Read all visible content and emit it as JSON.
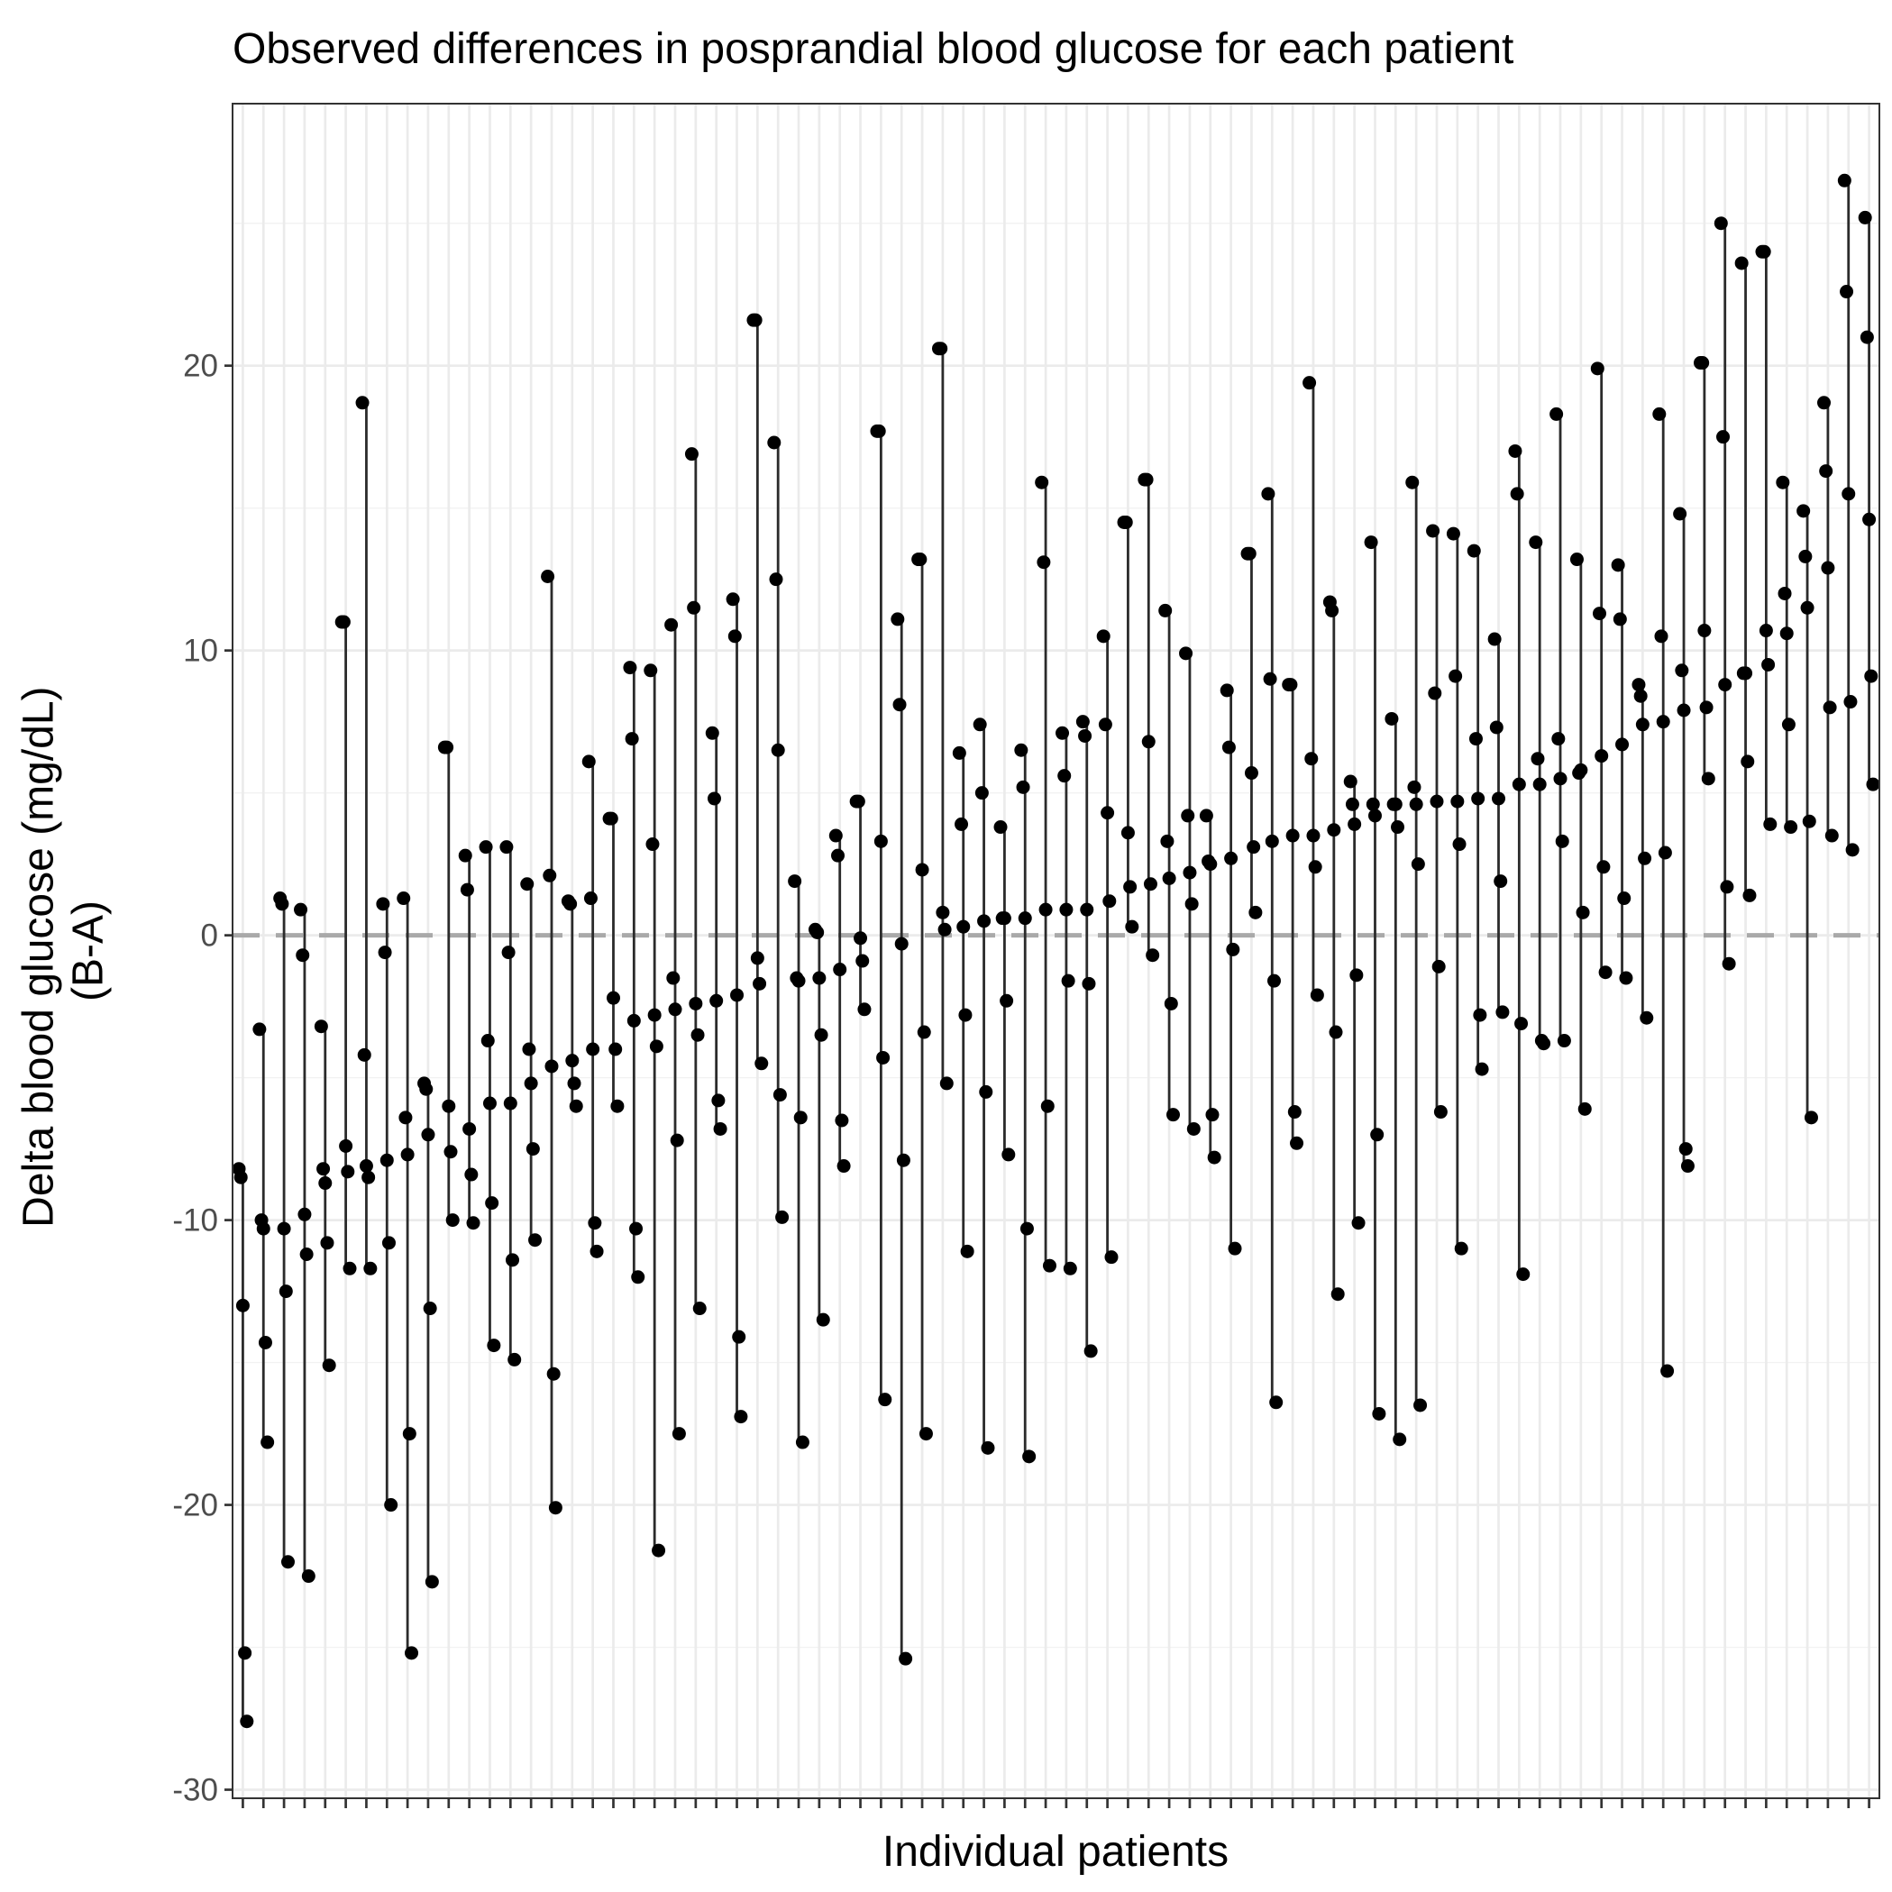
{
  "chart_data": {
    "type": "scatter",
    "title": "Observed differences in posprandial blood glucose for each patient",
    "xlabel": "Individual patients",
    "ylabel": "Delta blood glucose (mg/dL)\n(B-A)",
    "ylim": [
      -30.3,
      29.2
    ],
    "yticks": [
      -30,
      -20,
      -10,
      0,
      10,
      20
    ],
    "ytick_labels": [
      "-30",
      "-20",
      "-10",
      "0",
      "10",
      "20"
    ],
    "reference_line": {
      "y": 0,
      "style": "dashed",
      "color": "#a9a9a9"
    },
    "grid": true,
    "legend": "none",
    "n_patients": 80,
    "point_color": "#000000",
    "line_color": "#2b2b2b",
    "patients": [
      {
        "values": [
          -8.2,
          -8.5,
          -13.0,
          -25.2,
          -27.6
        ]
      },
      {
        "values": [
          -3.3,
          -10.0,
          -10.3,
          -14.3,
          -17.8
        ]
      },
      {
        "values": [
          1.3,
          1.1,
          -10.3,
          -12.5,
          -22.0
        ]
      },
      {
        "values": [
          0.9,
          -0.7,
          -9.8,
          -11.2,
          -22.5
        ]
      },
      {
        "values": [
          -3.2,
          -8.2,
          -8.7,
          -10.8,
          -15.1
        ]
      },
      {
        "values": [
          11.0,
          11.0,
          -7.4,
          -8.3,
          -11.7
        ]
      },
      {
        "values": [
          18.7,
          -4.2,
          -8.1,
          -8.5,
          -11.7
        ]
      },
      {
        "values": [
          1.1,
          -0.6,
          -7.9,
          -10.8,
          -20.0
        ]
      },
      {
        "values": [
          1.3,
          -6.4,
          -7.7,
          -17.5,
          -25.2
        ]
      },
      {
        "values": [
          -5.2,
          -5.4,
          -7.0,
          -13.1,
          -22.7
        ]
      },
      {
        "values": [
          6.6,
          6.6,
          -6.0,
          -7.6,
          -10.0
        ]
      },
      {
        "values": [
          2.8,
          1.6,
          -6.8,
          -8.4,
          -10.1
        ]
      },
      {
        "values": [
          3.1,
          -3.7,
          -5.9,
          -9.4,
          -14.4
        ]
      },
      {
        "values": [
          3.1,
          -0.6,
          -5.9,
          -11.4,
          -14.9
        ]
      },
      {
        "values": [
          1.8,
          -4.0,
          -5.2,
          -7.5,
          -10.7
        ]
      },
      {
        "values": [
          12.6,
          2.1,
          -4.6,
          -15.4,
          -20.1
        ]
      },
      {
        "values": [
          1.2,
          1.1,
          -4.4,
          -5.2,
          -6.0
        ]
      },
      {
        "values": [
          6.1,
          1.3,
          -4.0,
          -10.1,
          -11.1
        ]
      },
      {
        "values": [
          4.1,
          4.1,
          -2.2,
          -4.0,
          -6.0
        ]
      },
      {
        "values": [
          9.4,
          6.9,
          -3.0,
          -10.3,
          -12.0
        ]
      },
      {
        "values": [
          9.3,
          3.2,
          -2.8,
          -3.9,
          -21.6
        ]
      },
      {
        "values": [
          10.9,
          -1.5,
          -2.6,
          -7.2,
          -17.5
        ]
      },
      {
        "values": [
          16.9,
          11.5,
          -2.4,
          -3.5,
          -13.1
        ]
      },
      {
        "values": [
          7.1,
          4.8,
          -2.3,
          -5.8,
          -6.8
        ]
      },
      {
        "values": [
          11.8,
          10.5,
          -2.1,
          -14.1,
          -16.9
        ]
      },
      {
        "values": [
          21.6,
          21.6,
          -0.8,
          -1.7,
          -4.5
        ]
      },
      {
        "values": [
          17.3,
          12.5,
          6.5,
          -5.6,
          -9.9
        ]
      },
      {
        "values": [
          1.9,
          -1.5,
          -1.6,
          -6.4,
          -17.8
        ]
      },
      {
        "values": [
          0.2,
          0.1,
          -1.5,
          -3.5,
          -13.5
        ]
      },
      {
        "values": [
          3.5,
          2.8,
          -1.2,
          -6.5,
          -8.1
        ]
      },
      {
        "values": [
          4.7,
          4.7,
          -0.1,
          -0.9,
          -2.6
        ]
      },
      {
        "values": [
          17.7,
          17.7,
          3.3,
          -4.3,
          -16.3
        ]
      },
      {
        "values": [
          11.1,
          8.1,
          -0.3,
          -7.9,
          -25.4
        ]
      },
      {
        "values": [
          13.2,
          13.2,
          2.3,
          -3.4,
          -17.5
        ]
      },
      {
        "values": [
          20.6,
          20.6,
          0.8,
          0.2,
          -5.2
        ]
      },
      {
        "values": [
          6.4,
          3.9,
          0.3,
          -2.8,
          -11.1
        ]
      },
      {
        "values": [
          7.4,
          5.0,
          0.5,
          -5.5,
          -18.0
        ]
      },
      {
        "values": [
          3.8,
          0.6,
          0.6,
          -2.3,
          -7.7
        ]
      },
      {
        "values": [
          6.5,
          5.2,
          0.6,
          -10.3,
          -18.3
        ]
      },
      {
        "values": [
          15.9,
          13.1,
          0.9,
          -6.0,
          -11.6
        ]
      },
      {
        "values": [
          7.1,
          5.6,
          0.9,
          -1.6,
          -11.7
        ]
      },
      {
        "values": [
          7.5,
          7.0,
          0.9,
          -1.7,
          -14.6
        ]
      },
      {
        "values": [
          10.5,
          7.4,
          4.3,
          1.2,
          -11.3
        ]
      },
      {
        "values": [
          14.5,
          14.5,
          3.6,
          1.7,
          0.3
        ]
      },
      {
        "values": [
          16.0,
          16.0,
          6.8,
          1.8,
          -0.7
        ]
      },
      {
        "values": [
          11.4,
          3.3,
          2.0,
          -2.4,
          -6.3
        ]
      },
      {
        "values": [
          9.9,
          4.2,
          2.2,
          1.1,
          -6.8
        ]
      },
      {
        "values": [
          4.2,
          2.6,
          2.5,
          -6.3,
          -7.8
        ]
      },
      {
        "values": [
          8.6,
          6.6,
          2.7,
          -0.5,
          -11.0
        ]
      },
      {
        "values": [
          13.4,
          13.4,
          5.7,
          3.1,
          0.8
        ]
      },
      {
        "values": [
          15.5,
          9.0,
          3.3,
          -1.6,
          -16.4
        ]
      },
      {
        "values": [
          8.8,
          8.8,
          3.5,
          -6.2,
          -7.3
        ]
      },
      {
        "values": [
          19.4,
          6.2,
          3.5,
          2.4,
          -2.1
        ]
      },
      {
        "values": [
          11.7,
          11.4,
          3.7,
          -3.4,
          -12.6
        ]
      },
      {
        "values": [
          5.4,
          4.6,
          3.9,
          -1.4,
          -10.1
        ]
      },
      {
        "values": [
          13.8,
          4.6,
          4.2,
          -7.0,
          -16.8
        ]
      },
      {
        "values": [
          7.6,
          4.6,
          4.6,
          3.8,
          -17.7
        ]
      },
      {
        "values": [
          15.9,
          5.2,
          4.6,
          2.5,
          -16.5
        ]
      },
      {
        "values": [
          14.2,
          8.5,
          4.7,
          -1.1,
          -6.2
        ]
      },
      {
        "values": [
          14.1,
          9.1,
          4.7,
          3.2,
          -11.0
        ]
      },
      {
        "values": [
          13.5,
          6.9,
          4.8,
          -2.8,
          -4.7
        ]
      },
      {
        "values": [
          10.4,
          7.3,
          4.8,
          1.9,
          -2.7
        ]
      },
      {
        "values": [
          17.0,
          15.5,
          5.3,
          -3.1,
          -11.9
        ]
      },
      {
        "values": [
          13.8,
          6.2,
          5.3,
          -3.7,
          -3.8
        ]
      },
      {
        "values": [
          18.3,
          6.9,
          5.5,
          3.3,
          -3.7
        ]
      },
      {
        "values": [
          13.2,
          5.7,
          5.8,
          0.8,
          -6.1
        ]
      },
      {
        "values": [
          19.9,
          11.3,
          6.3,
          2.4,
          -1.3
        ]
      },
      {
        "values": [
          13.0,
          11.1,
          6.7,
          1.3,
          -1.5
        ]
      },
      {
        "values": [
          8.8,
          8.4,
          7.4,
          2.7,
          -2.9
        ]
      },
      {
        "values": [
          18.3,
          10.5,
          7.5,
          2.9,
          -15.3
        ]
      },
      {
        "values": [
          14.8,
          9.3,
          7.9,
          -7.5,
          -8.1
        ]
      },
      {
        "values": [
          20.1,
          20.1,
          10.7,
          8.0,
          5.5
        ]
      },
      {
        "values": [
          25.0,
          17.5,
          8.8,
          1.7,
          -1.0
        ]
      },
      {
        "values": [
          23.6,
          9.2,
          9.2,
          6.1,
          1.4
        ]
      },
      {
        "values": [
          24.0,
          24.0,
          10.7,
          9.5,
          3.9
        ]
      },
      {
        "values": [
          15.9,
          12.0,
          10.6,
          7.4,
          3.8
        ]
      },
      {
        "values": [
          14.9,
          13.3,
          11.5,
          4.0,
          -6.4
        ]
      },
      {
        "values": [
          18.7,
          16.3,
          12.9,
          8.0,
          3.5
        ]
      },
      {
        "values": [
          26.5,
          22.6,
          15.5,
          8.2,
          3.0
        ]
      },
      {
        "values": [
          25.2,
          21.0,
          14.6,
          9.1,
          5.3
        ]
      }
    ]
  }
}
